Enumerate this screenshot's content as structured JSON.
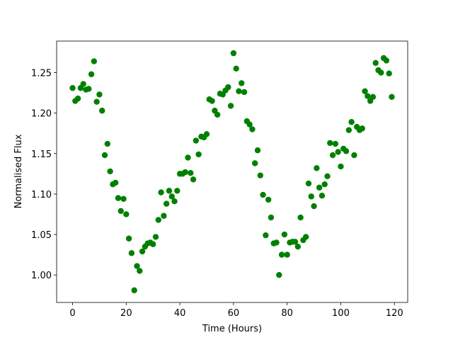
{
  "chart_data": {
    "type": "scatter",
    "xlabel": "Time (Hours)",
    "ylabel": "Normalised Flux",
    "color": "#008000",
    "x": [
      0,
      1,
      2,
      3,
      4,
      5,
      6,
      7,
      8,
      9,
      10,
      11,
      12,
      13,
      14,
      15,
      16,
      17,
      18,
      19,
      20,
      21,
      22,
      23,
      24,
      25,
      26,
      27,
      28,
      29,
      30,
      31,
      32,
      33,
      34,
      35,
      36,
      37,
      38,
      39,
      40,
      41,
      42,
      43,
      44,
      45,
      46,
      47,
      48,
      49,
      50,
      51,
      52,
      53,
      54,
      55,
      56,
      57,
      58,
      59,
      60,
      61,
      62,
      63,
      64,
      65,
      66,
      67,
      68,
      69,
      70,
      71,
      72,
      73,
      74,
      75,
      76,
      77,
      78,
      79,
      80,
      81,
      82,
      83,
      84,
      85,
      86,
      87,
      88,
      89,
      90,
      91,
      92,
      93,
      94,
      95,
      96,
      97,
      98,
      99,
      100,
      101,
      102,
      103,
      104,
      105,
      106,
      107,
      108,
      109,
      110,
      111,
      112,
      113,
      114,
      115,
      116,
      117,
      118,
      119
    ],
    "values": [
      1.231,
      1.215,
      1.218,
      1.231,
      1.236,
      1.229,
      1.23,
      1.248,
      1.264,
      1.214,
      1.223,
      1.203,
      1.148,
      1.162,
      1.128,
      1.112,
      1.114,
      1.095,
      1.079,
      1.094,
      1.075,
      1.045,
      1.027,
      0.981,
      1.011,
      1.005,
      1.029,
      1.035,
      1.039,
      1.04,
      1.038,
      1.047,
      1.068,
      1.102,
      1.073,
      1.088,
      1.104,
      1.097,
      1.091,
      1.104,
      1.125,
      1.125,
      1.127,
      1.145,
      1.126,
      1.118,
      1.166,
      1.149,
      1.171,
      1.17,
      1.174,
      1.217,
      1.215,
      1.203,
      1.198,
      1.224,
      1.223,
      1.228,
      1.232,
      1.209,
      1.274,
      1.255,
      1.227,
      1.237,
      1.226,
      1.19,
      1.186,
      1.18,
      1.138,
      1.154,
      1.123,
      1.099,
      1.049,
      1.093,
      1.071,
      1.039,
      1.04,
      1.0,
      1.025,
      1.05,
      1.025,
      1.04,
      1.041,
      1.041,
      1.035,
      1.071,
      1.043,
      1.047,
      1.113,
      1.097,
      1.085,
      1.132,
      1.108,
      1.098,
      1.112,
      1.122,
      1.163,
      1.148,
      1.162,
      1.152,
      1.134,
      1.156,
      1.153,
      1.179,
      1.189,
      1.148,
      1.183,
      1.179,
      1.181,
      1.227,
      1.221,
      1.215,
      1.22,
      1.262,
      1.253,
      1.25,
      1.268,
      1.265,
      1.249,
      1.22
    ],
    "xlim": [
      -5.95,
      124.95
    ],
    "xticks": [
      0,
      20,
      40,
      60,
      80,
      100,
      120
    ],
    "ylim": [
      0.966,
      1.289
    ],
    "yticks": [
      {
        "value": 1.0,
        "label": "1.00"
      },
      {
        "value": 1.05,
        "label": "1.05"
      },
      {
        "value": 1.1,
        "label": "1.10"
      },
      {
        "value": 1.15,
        "label": "1.15"
      },
      {
        "value": 1.2,
        "label": "1.20"
      },
      {
        "value": 1.25,
        "label": "1.25"
      }
    ],
    "grid": false
  }
}
